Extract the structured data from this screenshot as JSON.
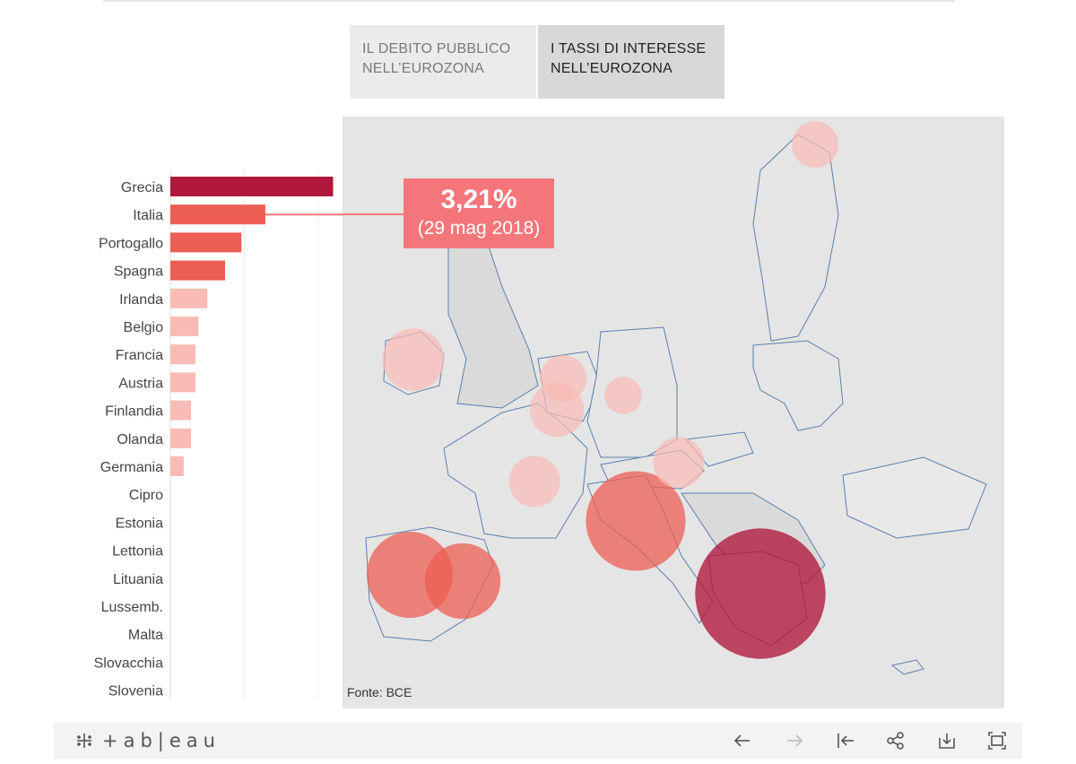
{
  "tabs": [
    {
      "line1": "IL DEBITO PUBBLICO",
      "line2": "NELL’EUROZONA"
    },
    {
      "line1": "I TASSI DI INTERESSE",
      "line2": "NELL’EUROZONA"
    }
  ],
  "callout": {
    "value": "3,21%",
    "date": "(29 mag 2018)"
  },
  "source": "Fonte: BCE",
  "footer": {
    "brand": "+ab|eau"
  },
  "colors": {
    "high": "#b0173b",
    "medium": "#ec5d53",
    "low": "#f8bbb6",
    "highlight": "#f4767a",
    "map_land": "#e5e5e5",
    "map_border": "#5a7fb0"
  },
  "chart_data": {
    "type": "bar",
    "orientation": "horizontal",
    "categories": [
      "Grecia",
      "Italia",
      "Portogallo",
      "Spagna",
      "Irlanda",
      "Belgio",
      "Francia",
      "Austria",
      "Finlandia",
      "Olanda",
      "Germania",
      "Cipro",
      "Estonia",
      "Lettonia",
      "Lituania",
      "Lussemb.",
      "Malta",
      "Slovacchia",
      "Slovenia"
    ],
    "values": [
      5.5,
      3.21,
      2.4,
      1.85,
      1.25,
      0.95,
      0.85,
      0.85,
      0.7,
      0.7,
      0.45,
      0,
      0,
      0,
      0,
      0,
      0,
      0,
      0
    ],
    "xlim": [
      0,
      6
    ],
    "highlight": {
      "category": "Italia",
      "value": 3.21,
      "date": "29 mag 2018"
    },
    "bubbles": [
      {
        "country": "Grecia",
        "value": 5.5
      },
      {
        "country": "Italia",
        "value": 3.21
      },
      {
        "country": "Portogallo",
        "value": 2.4
      },
      {
        "country": "Spagna",
        "value": 1.85
      },
      {
        "country": "Irlanda",
        "value": 1.25
      },
      {
        "country": "Belgio",
        "value": 0.95
      },
      {
        "country": "Francia",
        "value": 0.85
      },
      {
        "country": "Austria",
        "value": 0.85
      },
      {
        "country": "Finlandia",
        "value": 0.7
      },
      {
        "country": "Olanda",
        "value": 0.7
      },
      {
        "country": "Germania",
        "value": 0.45
      }
    ]
  }
}
